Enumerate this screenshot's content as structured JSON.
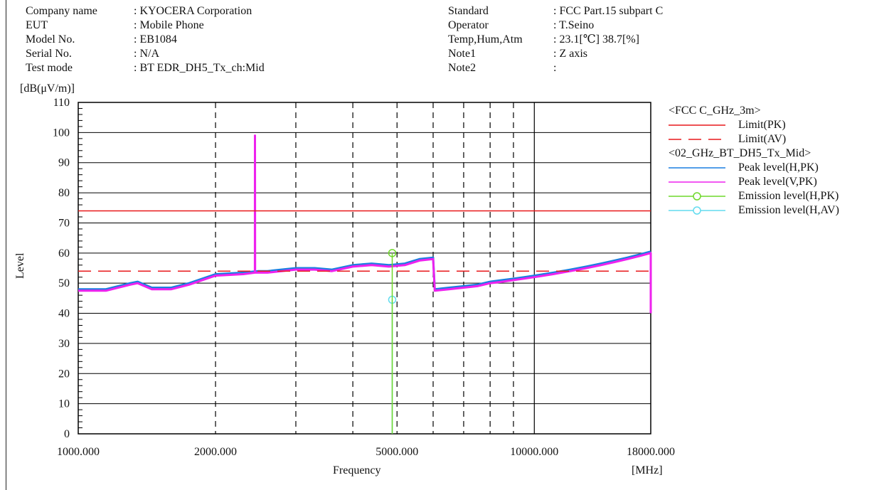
{
  "header_left": [
    {
      "key": "Company name",
      "value": ": KYOCERA Corporation"
    },
    {
      "key": "EUT",
      "value": ": Mobile Phone"
    },
    {
      "key": "Model No.",
      "value": ": EB1084"
    },
    {
      "key": "Serial No.",
      "value": ": N/A"
    },
    {
      "key": "Test mode",
      "value": ": BT EDR_DH5_Tx_ch:Mid"
    }
  ],
  "header_right": [
    {
      "key": "Standard",
      "value": ": FCC Part.15 subpart C"
    },
    {
      "key": "Operator",
      "value": ": T.Seino"
    },
    {
      "key": "Temp,Hum,Atm",
      "value": ": 23.1[℃] 38.7[%]"
    },
    {
      "key": "Note1",
      "value": ": Z axis"
    },
    {
      "key": "Note2",
      "value": ":"
    }
  ],
  "colors": {
    "limit": "#e8191b",
    "peak_h": "#1a7fe0",
    "peak_v": "#ee22ee",
    "emission_pk": "#6fd82a",
    "emission_av": "#62dcef"
  },
  "chart_data": {
    "type": "line",
    "xscale": "log",
    "xlim": [
      1000,
      18000
    ],
    "ylim": [
      0,
      110
    ],
    "xlabel": "Frequency",
    "xunit": "[MHz]",
    "ylabel": "Level",
    "yunit": "[dB(μV/m)]",
    "y_ticks": [
      0,
      10,
      20,
      30,
      40,
      50,
      60,
      70,
      80,
      90,
      100,
      110
    ],
    "x_tick_labels": [
      {
        "value": 1000,
        "label": "1000.000"
      },
      {
        "value": 2000,
        "label": "2000.000"
      },
      {
        "value": 5000,
        "label": "5000.000"
      },
      {
        "value": 10000,
        "label": "10000.000"
      },
      {
        "value": 18000,
        "label": "18000.000"
      }
    ],
    "x_grid_major": [
      10000
    ],
    "x_grid_minor": [
      2000,
      3000,
      4000,
      5000,
      6000,
      7000,
      8000,
      9000
    ],
    "legend": {
      "groups": [
        {
          "title": "<FCC C_GHz_3m>",
          "items": [
            {
              "label": "Limit(PK)",
              "style": "limit_pk"
            },
            {
              "label": "Limit(AV)",
              "style": "limit_av"
            }
          ]
        },
        {
          "title": "<02_GHz_BT_DH5_Tx_Mid>",
          "items": [
            {
              "label": "Peak level(H,PK)",
              "style": "peak_h"
            },
            {
              "label": "Peak level(V,PK)",
              "style": "peak_v"
            },
            {
              "label": "Emission level(H,PK)",
              "style": "emission_pk"
            },
            {
              "label": "Emission level(H,AV)",
              "style": "emission_av"
            }
          ]
        }
      ]
    },
    "series": [
      {
        "name": "Limit(PK)",
        "x": [
          1000,
          18000
        ],
        "y": [
          74,
          74
        ]
      },
      {
        "name": "Limit(AV)",
        "x": [
          1000,
          18000
        ],
        "y": [
          54,
          54
        ]
      },
      {
        "name": "Peak level(H,PK)",
        "x": [
          1000,
          1150,
          1300,
          1350,
          1450,
          1600,
          1750,
          2000,
          2300,
          2480,
          2600,
          3000,
          3300,
          3600,
          4000,
          4400,
          4800,
          5200,
          5600,
          6000,
          6050,
          6500,
          7000,
          7500,
          8000,
          8500,
          9000,
          9500,
          10000,
          11000,
          12000,
          13000,
          14000,
          15000,
          16000,
          17000,
          18000
        ],
        "y": [
          48,
          48,
          50,
          50.5,
          48.5,
          48.5,
          50,
          53,
          53.5,
          54,
          54,
          55,
          55,
          54.5,
          56,
          56.5,
          56,
          56.5,
          58,
          58.5,
          48,
          48.5,
          49,
          49.5,
          50.5,
          51,
          51.5,
          52,
          52.5,
          53.5,
          54.5,
          55.5,
          56.5,
          57.5,
          58.5,
          59.5,
          60.5
        ]
      },
      {
        "name": "Peak level(V,PK)",
        "x": [
          1000,
          1150,
          1300,
          1350,
          1450,
          1600,
          1750,
          2000,
          2300,
          2440,
          2441,
          2442,
          2600,
          3000,
          3300,
          3600,
          4000,
          4400,
          4800,
          5200,
          5600,
          6000,
          6050,
          6500,
          7000,
          7500,
          8000,
          8500,
          9000,
          9500,
          10000,
          11000,
          12000,
          13000,
          14000,
          15000,
          16000,
          17000,
          18000,
          18000
        ],
        "y": [
          47.5,
          47.5,
          49.5,
          50,
          48,
          48,
          49.5,
          52.5,
          53,
          53.5,
          99,
          53.5,
          53.5,
          54.5,
          54.5,
          54,
          55.5,
          56,
          55.5,
          56,
          57.5,
          58,
          47.5,
          48,
          48.5,
          49,
          50,
          50.5,
          51,
          51.5,
          52,
          53,
          54,
          55,
          56,
          57,
          58,
          59,
          60,
          40
        ]
      },
      {
        "name": "Emission level(H,PK)",
        "x": [
          4880,
          4880
        ],
        "y": [
          0,
          60
        ]
      },
      {
        "name": "Emission level(H,AV)",
        "x": [
          4880,
          4880
        ],
        "y": [
          0,
          44.5
        ]
      }
    ]
  }
}
